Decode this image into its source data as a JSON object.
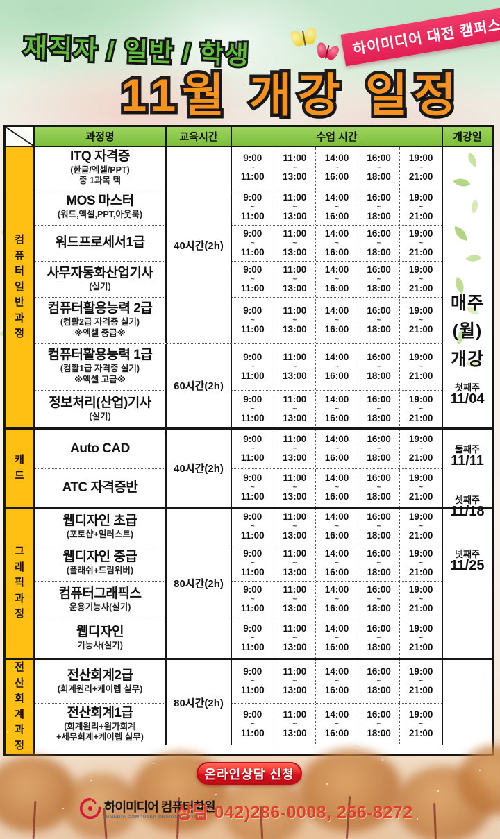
{
  "header": {
    "audience": "재직자 / 일반 / 학생",
    "campus": "하이미디어 대전 캠퍼스",
    "title": "11월 개강 일정"
  },
  "table": {
    "headers": {
      "course": "과정명",
      "hours": "교육시간",
      "class_time": "수업 시간",
      "start_date": "개강일"
    },
    "time_slots": [
      {
        "start": "9:00",
        "tilde": "~",
        "end": "11:00"
      },
      {
        "start": "11:00",
        "tilde": "~",
        "end": "13:00"
      },
      {
        "start": "14:00",
        "tilde": "~",
        "end": "16:00"
      },
      {
        "start": "16:00",
        "tilde": "~",
        "end": "18:00"
      },
      {
        "start": "19:00",
        "tilde": "~",
        "end": "21:00"
      }
    ],
    "categories": [
      {
        "name": "컴퓨터일반과정",
        "blocks": [
          {
            "hours": "40시간(2h)",
            "courses": [
              {
                "title": "ITQ 자격증",
                "sub1": "(한글/엑셀/PPT)",
                "sub2": "중 1과목 택"
              },
              {
                "title": "MOS 마스터",
                "sub1": "(워드,엑셀,PPT,아웃룩)"
              },
              {
                "title": "워드프로세서1급"
              },
              {
                "title": "사무자동화산업기사",
                "sub1": "(실기)"
              },
              {
                "title": "컴퓨터활용능력 2급",
                "sub1": "(컴활2급 자격증 실기)",
                "sub2": "※엑셀 중급※"
              }
            ]
          },
          {
            "hours": "60시간(2h)",
            "courses": [
              {
                "title": "컴퓨터활용능력 1급",
                "sub1": "(컴활1급 자격증 실기)",
                "sub2": "※엑셀 고급※"
              },
              {
                "title": "정보처리(산업)기사",
                "sub1": "(실기)"
              }
            ]
          }
        ]
      },
      {
        "name": "캐드",
        "blocks": [
          {
            "hours": "40시간(2h)",
            "courses": [
              {
                "title": "Auto CAD"
              },
              {
                "title": "ATC 자격증반"
              }
            ]
          }
        ]
      },
      {
        "name": "그래픽과정",
        "blocks": [
          {
            "hours": "80시간(2h)",
            "courses": [
              {
                "title": "웹디자인 초급",
                "sub1": "(포토샵+일러스트)"
              },
              {
                "title": "웹디자인 중급",
                "sub1": "(플래쉬+드림위버)"
              },
              {
                "title": "컴퓨터그래픽스",
                "sub1": "운용기능사(실기)"
              },
              {
                "title": "웹디자인",
                "sub1": "기능사(실기)"
              }
            ]
          }
        ]
      },
      {
        "name": "전산회계과정",
        "blocks": [
          {
            "hours": "80시간(2h)",
            "courses": [
              {
                "title": "전산회계2급",
                "sub1": "(회계원리+케이렙 실무)"
              },
              {
                "title": "전산회계1급",
                "sub1": "(회계원리+원가회계",
                "sub2": "+세무회계+케이렙 실무)"
              }
            ]
          }
        ]
      }
    ],
    "start_schedule": {
      "every": "매주",
      "day": "(월)",
      "open": "개강",
      "weeks": [
        {
          "label": "첫째주",
          "date": "11/04"
        },
        {
          "label": "둘째주",
          "date": "11/11"
        },
        {
          "label": "셋째주",
          "date": "11/18"
        },
        {
          "label": "넷째주",
          "date": "11/25"
        }
      ]
    }
  },
  "footer": {
    "cta": "온라인상담 신청",
    "logo_kr": "하이미디어 컴퓨터학원",
    "logo_en": "HIMEDIA COMPUTER DESIGN INSTITUTE",
    "phone": "상담 042)286-0008, 256-8272"
  },
  "colors": {
    "header_green": "#84c64a",
    "category_orange": "#ffc013",
    "ribbon_pink": "#e41e52",
    "title_orange": "#f6921e",
    "audience_green": "#63bc3f",
    "button_red": "#e8131f",
    "phone_red": "#e23f28"
  }
}
